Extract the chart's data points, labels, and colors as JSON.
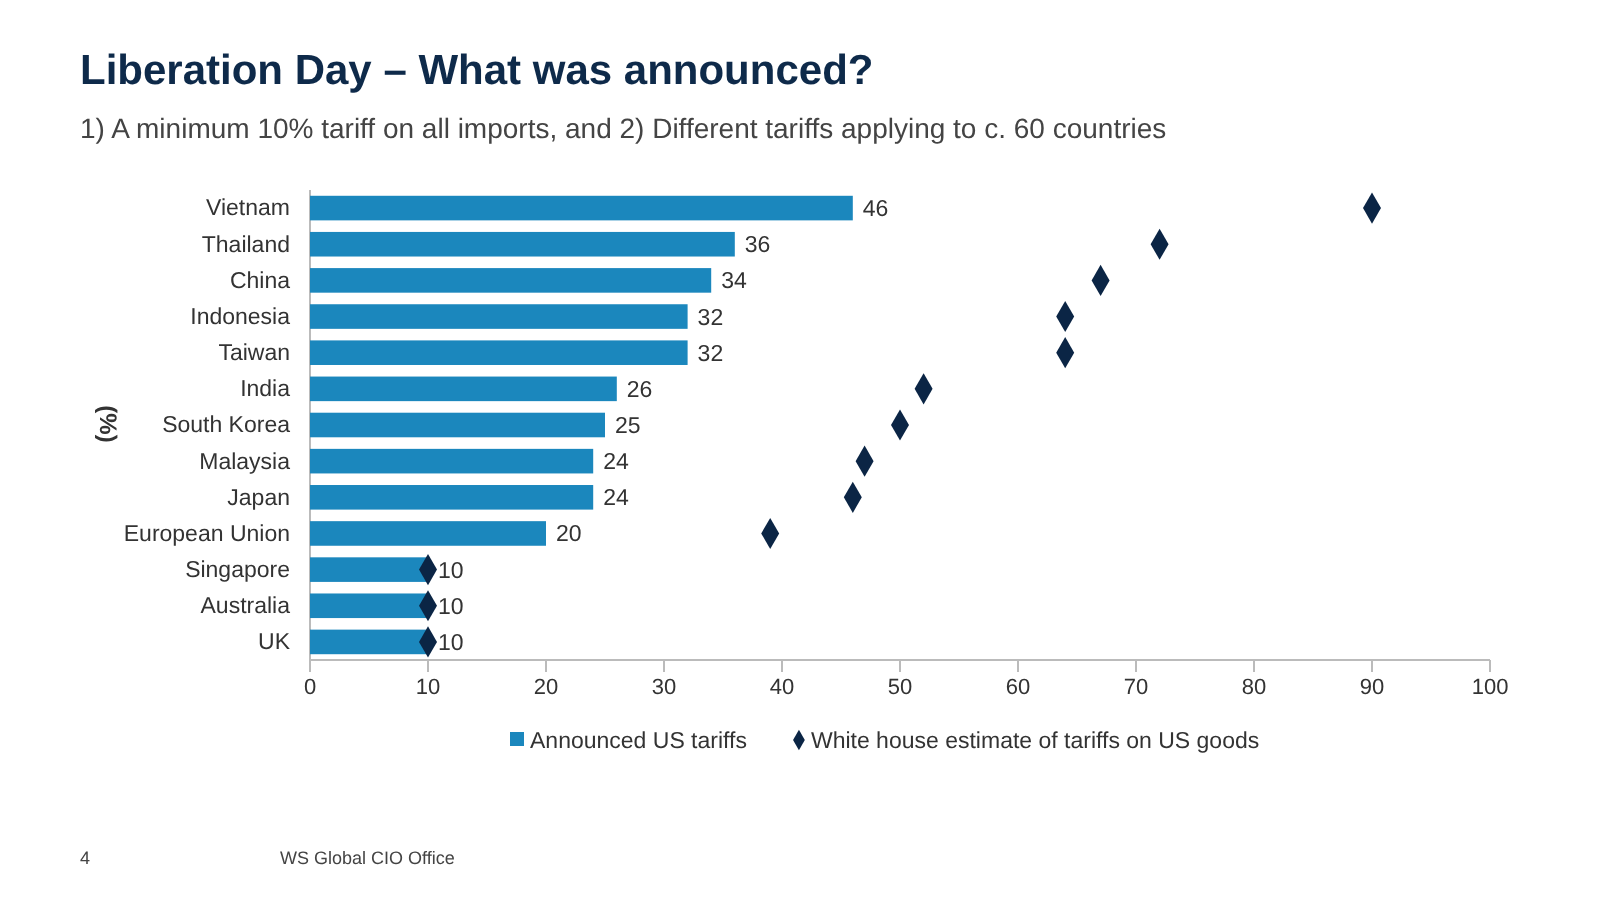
{
  "chart_data": {
    "type": "bar",
    "orientation": "horizontal",
    "title": "Liberation Day – What was announced?",
    "subtitle": "1) A minimum 10% tariff on all imports, and 2) Different tariffs applying to c. 60 countries",
    "ylabel": "(%)",
    "categories": [
      "Vietnam",
      "Thailand",
      "China",
      "Indonesia",
      "Taiwan",
      "India",
      "South Korea",
      "Malaysia",
      "Japan",
      "European Union",
      "Singapore",
      "Australia",
      "UK"
    ],
    "series": [
      {
        "name": "Announced US tariffs",
        "color": "#1b87bd",
        "values": [
          46,
          36,
          34,
          32,
          32,
          26,
          25,
          24,
          24,
          20,
          10,
          10,
          10
        ],
        "value_labels": [
          "46",
          "36",
          "34",
          "32",
          "32",
          "26",
          "25",
          "24",
          "24",
          "20",
          "10",
          "10",
          "10"
        ]
      },
      {
        "name": "White house estimate of tariffs on US goods",
        "type": "scatter",
        "color": "#0b2545",
        "marker": "diamond",
        "values": [
          90,
          72,
          67,
          64,
          64,
          52,
          50,
          47,
          46,
          39,
          10,
          10,
          10
        ]
      }
    ],
    "xlim": [
      0,
      100
    ],
    "xticks": [
      0,
      10,
      20,
      30,
      40,
      50,
      60,
      70,
      80,
      90,
      100
    ],
    "grid": false,
    "legend": "bottom",
    "annotations": [
      "4",
      "WS Global CIO Office"
    ]
  }
}
